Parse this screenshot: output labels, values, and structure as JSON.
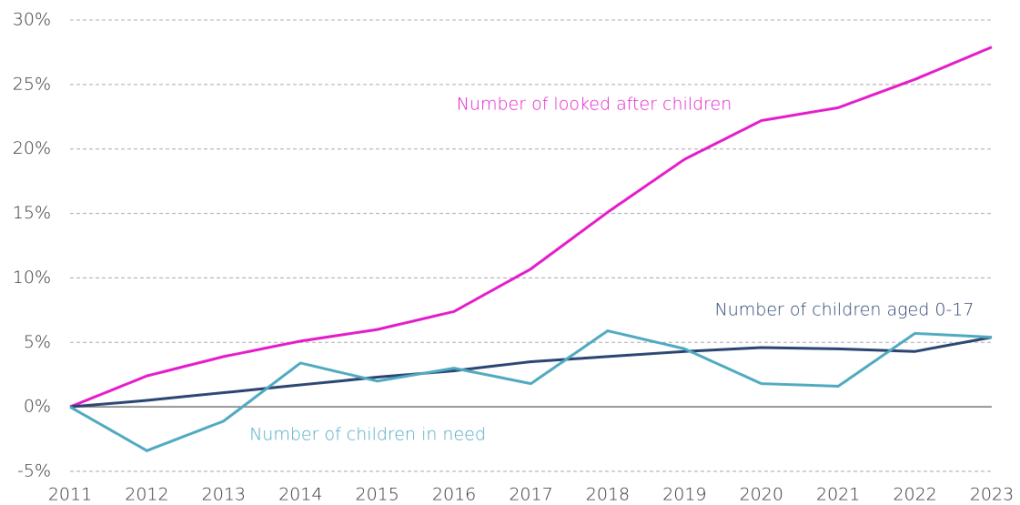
{
  "chart_data": {
    "type": "line",
    "categories": [
      "2011",
      "2012",
      "2013",
      "2014",
      "2015",
      "2016",
      "2017",
      "2018",
      "2019",
      "2020",
      "2021",
      "2022",
      "2023"
    ],
    "series": [
      {
        "name": "Number of looked after children",
        "color": "#e41bc9",
        "values": [
          0,
          2.4,
          3.9,
          5.1,
          6.0,
          7.4,
          10.7,
          15.1,
          19.2,
          22.2,
          23.2,
          25.4,
          27.9
        ]
      },
      {
        "name": "Number of children aged 0-17",
        "color": "#2b4571",
        "values": [
          0,
          0.5,
          1.1,
          1.7,
          2.3,
          2.8,
          3.5,
          3.9,
          4.3,
          4.6,
          4.5,
          4.3,
          5.4
        ]
      },
      {
        "name": "Number of children in need",
        "color": "#4fa9c0",
        "values": [
          0,
          -3.4,
          -1.1,
          3.4,
          2.0,
          3.0,
          1.8,
          5.9,
          4.5,
          1.8,
          1.6,
          5.7,
          5.4
        ]
      }
    ],
    "ylim": [
      -5,
      30
    ],
    "yticks": [
      {
        "value": -5,
        "label": "-5%"
      },
      {
        "value": 0,
        "label": "0%"
      },
      {
        "value": 5,
        "label": "5%"
      },
      {
        "value": 10,
        "label": "10%"
      },
      {
        "value": 15,
        "label": "15%"
      },
      {
        "value": 20,
        "label": "20%"
      },
      {
        "value": 25,
        "label": "25%"
      },
      {
        "value": 30,
        "label": "30%"
      }
    ],
    "grid": true
  }
}
